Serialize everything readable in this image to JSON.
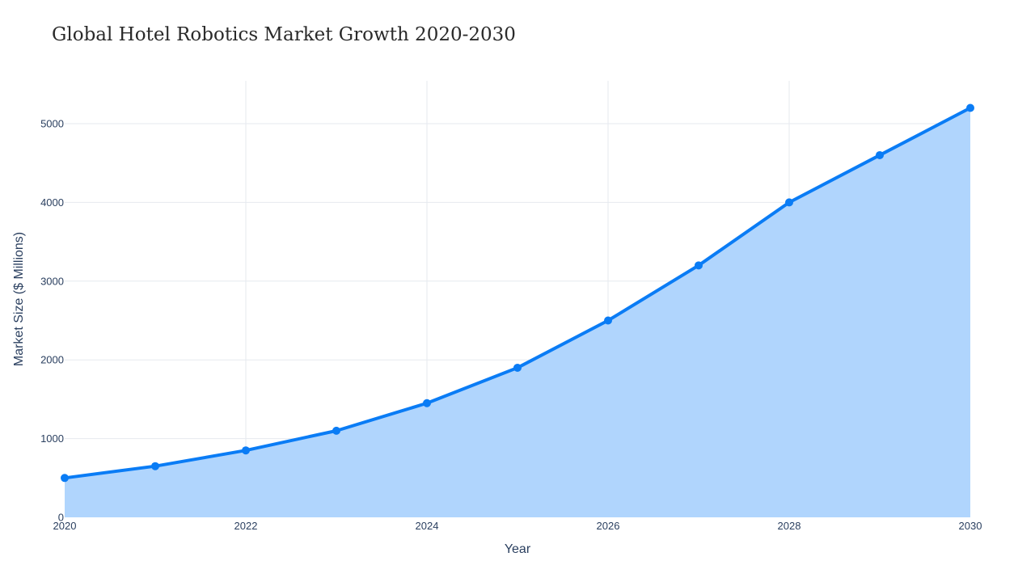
{
  "chart_data": {
    "type": "area",
    "title": "Global Hotel Robotics Market Growth 2020-2030",
    "xlabel": "Year",
    "ylabel": "Market Size ($ Millions)",
    "x": [
      2020,
      2021,
      2022,
      2023,
      2024,
      2025,
      2026,
      2027,
      2028,
      2029,
      2030
    ],
    "series": [
      {
        "values": [
          500,
          650,
          850,
          1100,
          1450,
          1900,
          2500,
          3200,
          4000,
          4600,
          5200
        ]
      }
    ],
    "xlim": [
      2020,
      2030
    ],
    "ylim": [
      0,
      5550
    ],
    "x_ticks": [
      2020,
      2022,
      2024,
      2026,
      2028,
      2030
    ],
    "y_ticks": [
      0,
      1000,
      2000,
      3000,
      4000,
      5000
    ],
    "grid": true,
    "legend": "none",
    "colors": {
      "line": "#0a7cf5",
      "fill": "#b0d5fd",
      "grid": "#e6e9ef",
      "text": "#2a3f5f",
      "title": "#2a2a2a"
    }
  }
}
